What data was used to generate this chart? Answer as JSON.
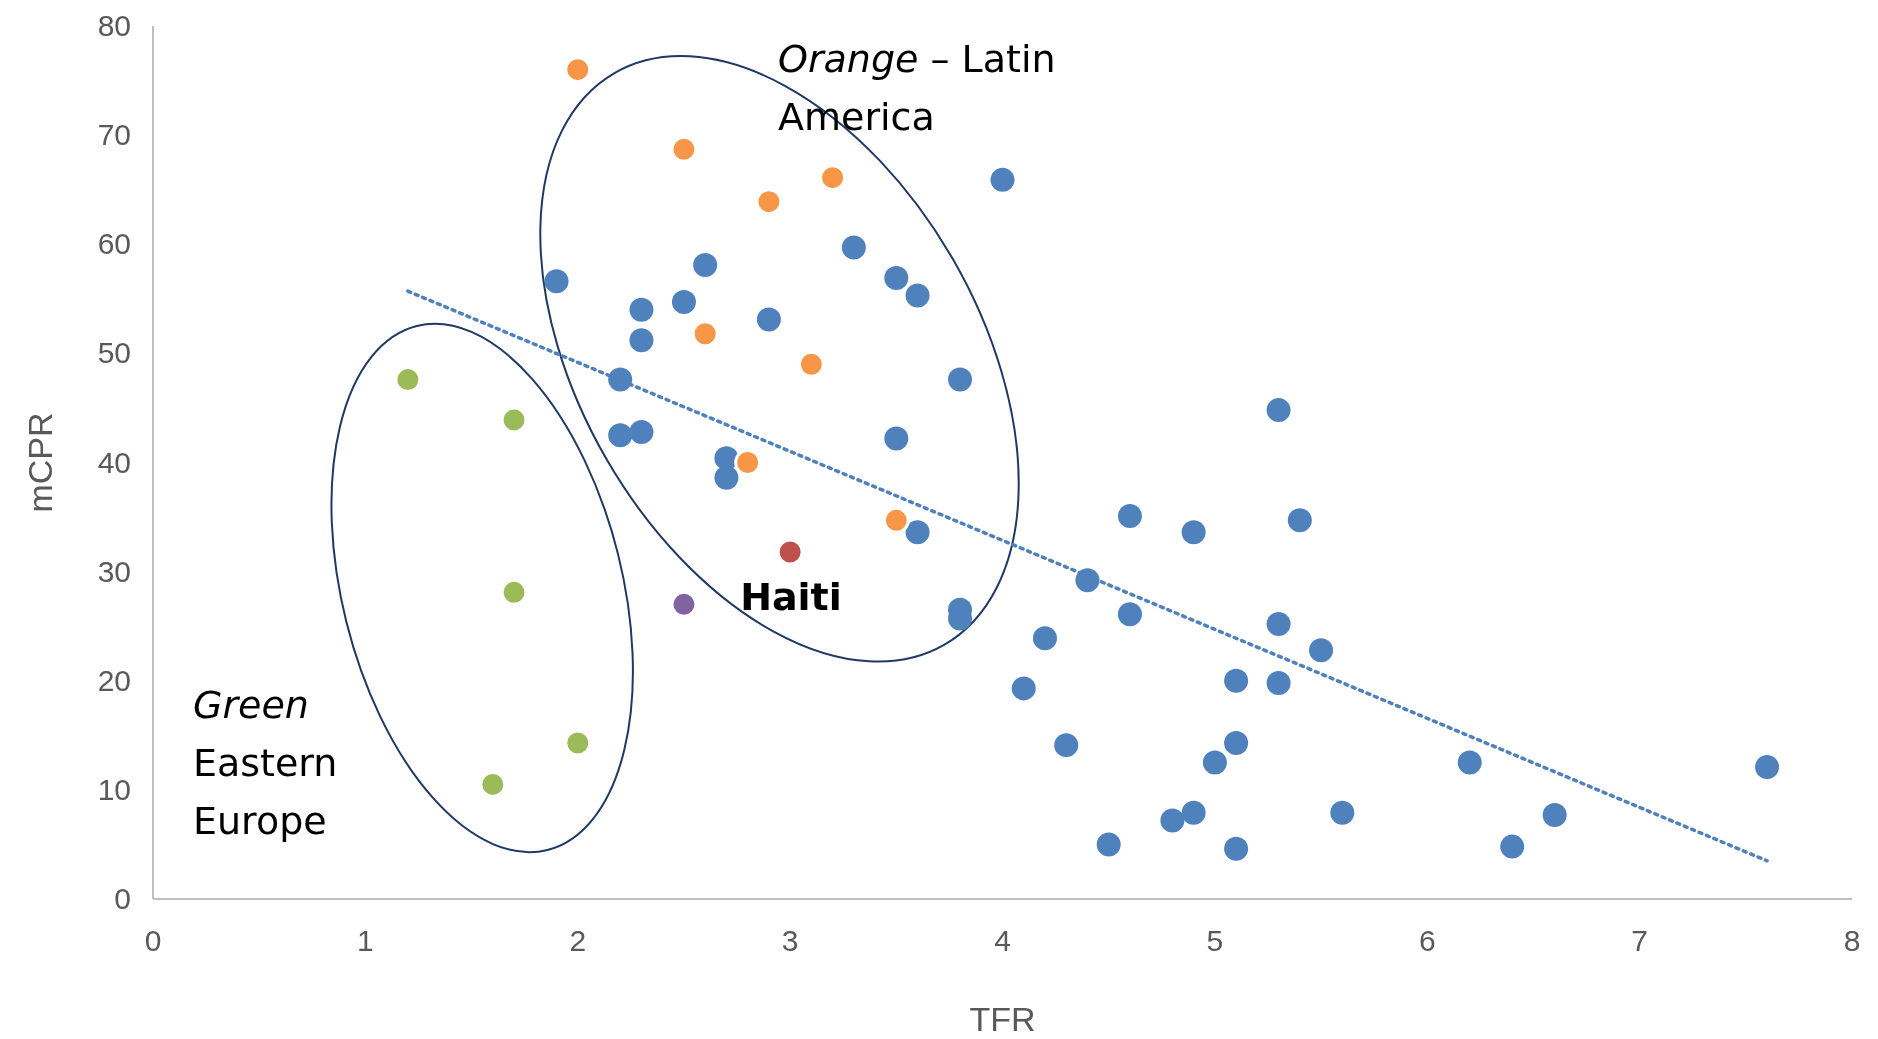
{
  "chart_data": {
    "type": "scatter",
    "xlabel": "TFR",
    "ylabel": "mCPR",
    "xlim": [
      0,
      8
    ],
    "ylim": [
      0,
      80
    ],
    "xticks": [
      0,
      1,
      2,
      3,
      4,
      5,
      6,
      7,
      8
    ],
    "yticks": [
      0,
      10,
      20,
      30,
      40,
      50,
      60,
      70,
      80
    ],
    "grid": false,
    "marker": "circle",
    "series": [
      {
        "color": "#4f81bd",
        "x": [
          1.9,
          2.3,
          2.3,
          2.5,
          2.6,
          2.9,
          3.3,
          3.5,
          3.6,
          3.8,
          4.0,
          2.2,
          2.2,
          2.3,
          2.7,
          2.7,
          3.5,
          3.6,
          3.8,
          3.8,
          4.4,
          4.2,
          4.1,
          4.3,
          4.5,
          4.6,
          4.6,
          4.9,
          4.8,
          4.9,
          5.0,
          5.1,
          5.1,
          5.1,
          5.3,
          5.3,
          5.3,
          5.4,
          5.5,
          5.6,
          6.2,
          6.4,
          6.6,
          7.6
        ],
        "values": [
          56.6,
          54.0,
          51.2,
          54.7,
          58.1,
          53.1,
          59.7,
          56.9,
          55.3,
          47.6,
          65.9,
          47.6,
          42.5,
          42.8,
          40.4,
          38.6,
          42.2,
          33.6,
          26.5,
          25.7,
          29.2,
          23.9,
          19.3,
          14.1,
          5.0,
          35.1,
          26.1,
          33.6,
          7.2,
          7.9,
          12.5,
          20.0,
          14.3,
          4.6,
          44.8,
          25.2,
          19.8,
          34.7,
          22.8,
          7.9,
          12.5,
          4.8,
          7.7,
          12.1
        ]
      },
      {
        "color": "#f79646",
        "x": [
          2.0,
          2.5,
          2.9,
          3.2,
          2.6,
          3.1,
          2.8,
          3.5
        ],
        "values": [
          76.0,
          68.7,
          63.9,
          66.1,
          51.8,
          49.0,
          40.0,
          34.7
        ]
      },
      {
        "color": "#9bbb59",
        "x": [
          1.2,
          1.7,
          1.7,
          2.0,
          1.6
        ],
        "values": [
          47.6,
          43.9,
          28.1,
          14.3,
          10.5
        ]
      },
      {
        "color": "#c0504d",
        "x": [
          3.0
        ],
        "values": [
          31.8
        ]
      },
      {
        "color": "#8064a2",
        "x": [
          2.5
        ],
        "values": [
          27.0
        ]
      },
      {
        "type": "line",
        "color": "#4f81bd",
        "line_style": "dotted",
        "marker": "none",
        "x": [
          1.2,
          7.6
        ],
        "values": [
          55.7,
          3.5
        ]
      }
    ],
    "annotations": [
      "Orange – Latin America",
      "Green Eastern Europe",
      {
        "text": "Haiti",
        "x": 3.0,
        "y": 31.8
      }
    ]
  }
}
